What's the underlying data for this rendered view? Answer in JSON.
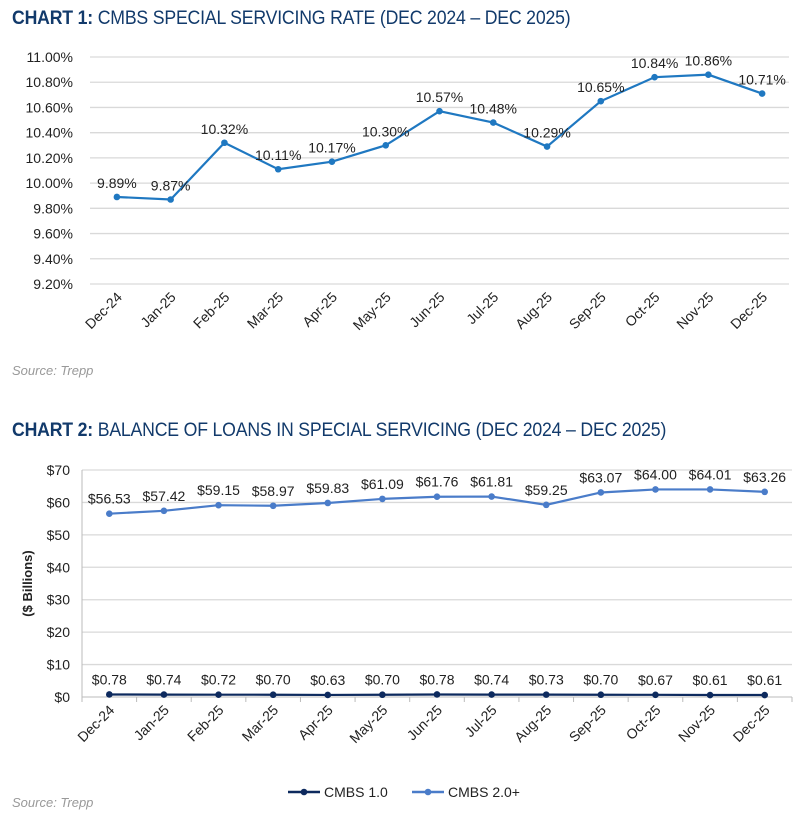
{
  "chart_data": [
    {
      "type": "line",
      "title_prefix": "CHART 1:",
      "title": "CMBS SPECIAL SERVICING RATE (DEC 2024 – DEC 2025)",
      "categories": [
        "Dec-24",
        "Jan-25",
        "Feb-25",
        "Mar-25",
        "Apr-25",
        "May-25",
        "Jun-25",
        "Jul-25",
        "Aug-25",
        "Sep-25",
        "Oct-25",
        "Nov-25",
        "Dec-25"
      ],
      "series": [
        {
          "values": [
            9.89,
            9.87,
            10.32,
            10.11,
            10.17,
            10.3,
            10.57,
            10.48,
            10.29,
            10.65,
            10.84,
            10.86,
            10.71
          ],
          "color": "#1f78c1"
        }
      ],
      "data_labels": [
        "9.89%",
        "9.87%",
        "10.32%",
        "10.11%",
        "10.17%",
        "10.30%",
        "10.57%",
        "10.48%",
        "10.29%",
        "10.65%",
        "10.84%",
        "10.86%",
        "10.71%"
      ],
      "ylim": [
        9.2,
        11.0
      ],
      "yticks": [
        "9.20%",
        "9.40%",
        "9.60%",
        "9.80%",
        "10.00%",
        "10.20%",
        "10.40%",
        "10.60%",
        "10.80%",
        "11.00%"
      ],
      "xlabel": "",
      "ylabel": "",
      "grid": true,
      "source": "Source: Trepp"
    },
    {
      "type": "line",
      "title_prefix": "CHART 2:",
      "title": "BALANCE OF LOANS IN SPECIAL SERVICING (DEC 2024 – DEC 2025)",
      "categories": [
        "Dec-24",
        "Jan-25",
        "Feb-25",
        "Mar-25",
        "Apr-25",
        "May-25",
        "Jun-25",
        "Jul-25",
        "Aug-25",
        "Sep-25",
        "Oct-25",
        "Nov-25",
        "Dec-25"
      ],
      "series": [
        {
          "name": "CMBS 1.0",
          "values": [
            0.78,
            0.74,
            0.72,
            0.7,
            0.63,
            0.7,
            0.78,
            0.74,
            0.73,
            0.7,
            0.67,
            0.61,
            0.61
          ],
          "color": "#0d2a5e",
          "data_labels": [
            "$0.78",
            "$0.74",
            "$0.72",
            "$0.70",
            "$0.63",
            "$0.70",
            "$0.78",
            "$0.74",
            "$0.73",
            "$0.70",
            "$0.67",
            "$0.61",
            "$0.61"
          ]
        },
        {
          "name": "CMBS 2.0+",
          "values": [
            56.53,
            57.42,
            59.15,
            58.97,
            59.83,
            61.09,
            61.76,
            61.81,
            59.25,
            63.07,
            64.0,
            64.01,
            63.26
          ],
          "color": "#4a7cc9",
          "data_labels": [
            "$56.53",
            "$57.42",
            "$59.15",
            "$58.97",
            "$59.83",
            "$61.09",
            "$61.76",
            "$61.81",
            "$59.25",
            "$63.07",
            "$64.00",
            "$64.01",
            "$63.26"
          ]
        }
      ],
      "ylim": [
        0,
        70
      ],
      "yticks": [
        "$0",
        "$10",
        "$20",
        "$30",
        "$40",
        "$50",
        "$60",
        "$70"
      ],
      "xlabel": "",
      "ylabel": "($ Billions)",
      "grid": true,
      "legend": "bottom",
      "source": "Source: Trepp"
    }
  ]
}
